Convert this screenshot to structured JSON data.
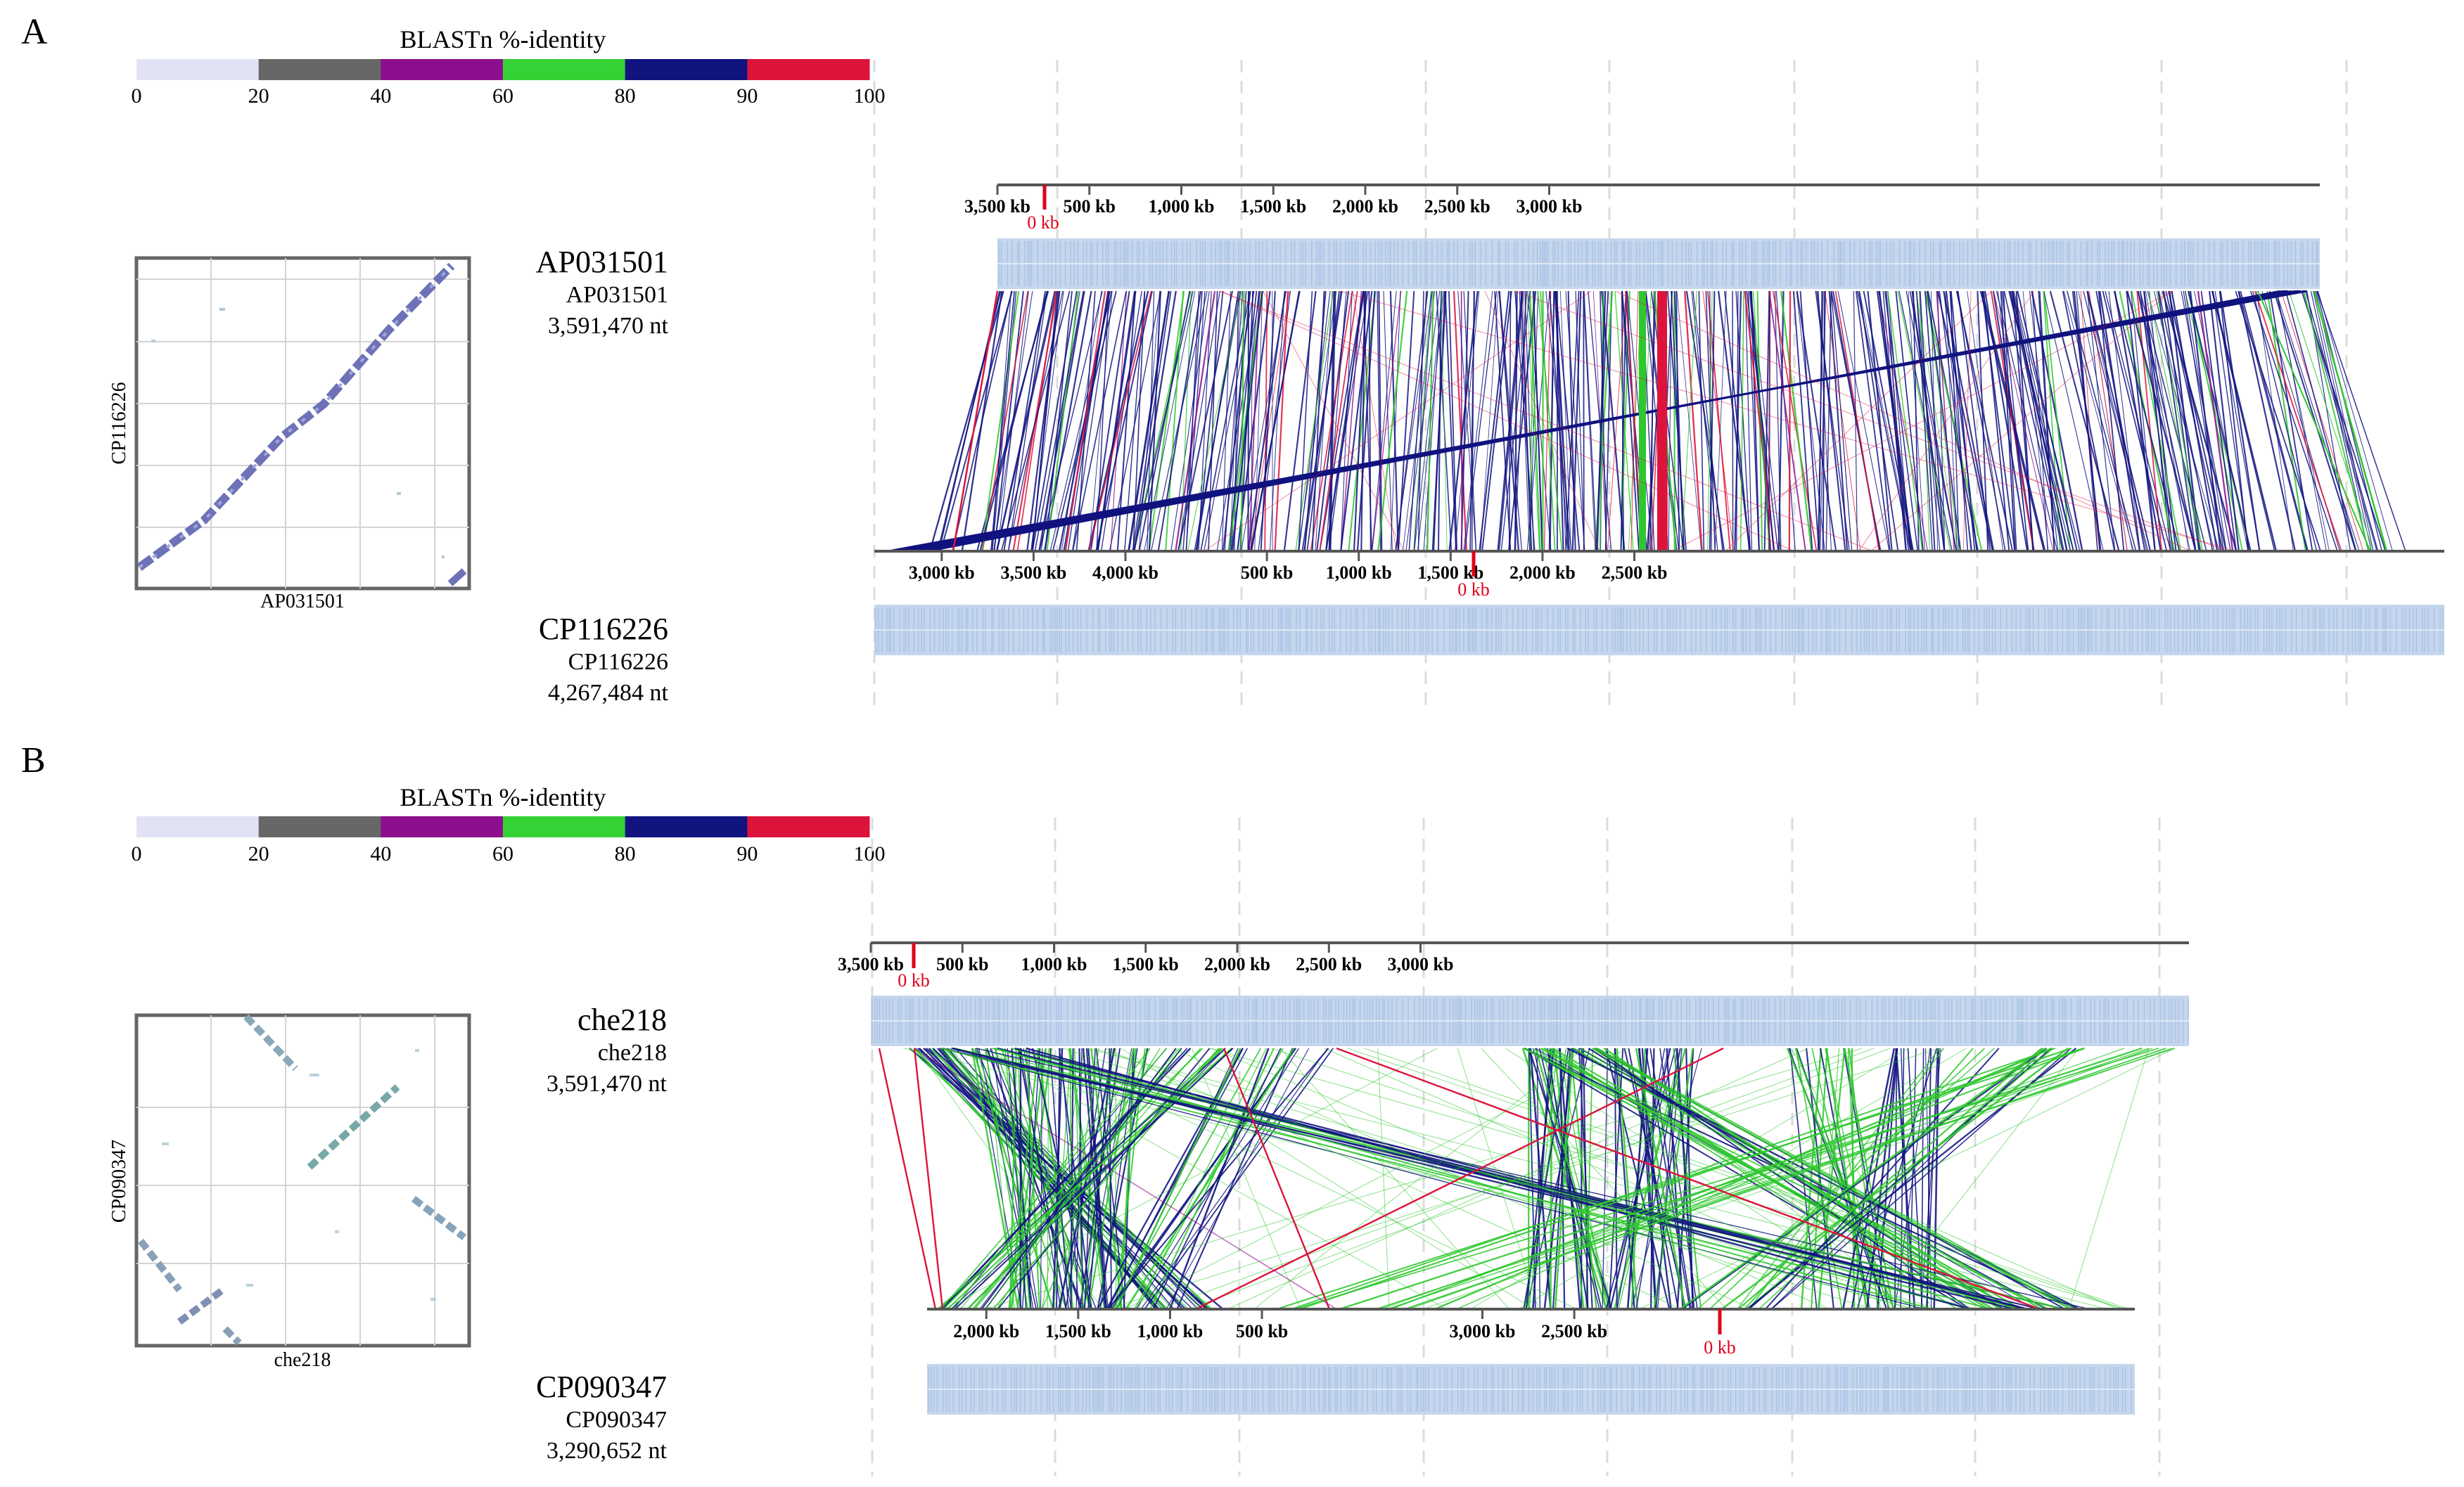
{
  "figure": {
    "panels": [
      {
        "label": "A",
        "legend": {
          "title": "BLASTn %-identity",
          "ticks": [
            "0",
            "20",
            "40",
            "60",
            "80",
            "90",
            "100"
          ],
          "colors": [
            "#e1e3f5",
            "#676767",
            "#8e0f8d",
            "#35d235",
            "#11137f",
            "#dc143c"
          ]
        },
        "dotplot": {
          "xlabel": "AP031501",
          "ylabel": "CP116226"
        },
        "query": {
          "name": "AP031501",
          "id": "AP031501",
          "length": "3,591,470 nt"
        },
        "subject": {
          "name": "CP116226",
          "id": "CP116226",
          "length": "4,267,484 nt"
        },
        "top_axis": {
          "zero_label": "0 kb",
          "ticks": [
            {
              "label": "3,500 kb",
              "pos": 0
            },
            {
              "label": "500 kb",
              "pos": 500
            },
            {
              "label": "1,000 kb",
              "pos": 1000
            },
            {
              "label": "1,500 kb",
              "pos": 1500
            },
            {
              "label": "2,000 kb",
              "pos": 2000
            },
            {
              "label": "2,500 kb",
              "pos": 2500
            },
            {
              "label": "3,000 kb",
              "pos": 3000
            }
          ]
        },
        "bottom_axis": {
          "zero_label": "0 kb",
          "ticks": [
            {
              "label": "3,000 kb",
              "pos": 340
            },
            {
              "label": "3,500 kb",
              "pos": 840
            },
            {
              "label": "4,000 kb",
              "pos": 1340
            },
            {
              "label": "500 kb",
              "pos": 2110
            },
            {
              "label": "1,000 kb",
              "pos": 2610
            },
            {
              "label": "1,500 kb",
              "pos": 3110
            },
            {
              "label": "2,000 kb",
              "pos": 3610
            },
            {
              "label": "2,500 kb",
              "pos": 4110
            }
          ]
        }
      },
      {
        "label": "B",
        "legend": {
          "title": "BLASTn %-identity",
          "ticks": [
            "0",
            "20",
            "40",
            "60",
            "80",
            "90",
            "100"
          ],
          "colors": [
            "#e1e3f5",
            "#676767",
            "#8e0f8d",
            "#35d235",
            "#11137f",
            "#dc143c"
          ]
        },
        "dotplot": {
          "xlabel": "che218",
          "ylabel": "CP090347"
        },
        "query": {
          "name": "che218",
          "id": "che218",
          "length": "3,591,470 nt"
        },
        "subject": {
          "name": "CP090347",
          "id": "CP090347",
          "length": "3,290,652 nt"
        },
        "top_axis": {
          "zero_label": "0 kb",
          "ticks": [
            {
              "label": "3,500 kb",
              "pos": 0
            },
            {
              "label": "500 kb",
              "pos": 500
            },
            {
              "label": "1,000 kb",
              "pos": 1000
            },
            {
              "label": "1,500 kb",
              "pos": 1500
            },
            {
              "label": "2,000 kb",
              "pos": 2000
            },
            {
              "label": "2,500 kb",
              "pos": 2500
            },
            {
              "label": "3,000 kb",
              "pos": 3000
            }
          ]
        },
        "bottom_axis": {
          "zero_label": "0 kb",
          "ticks": [
            {
              "label": "2,000 kb",
              "pos": 200
            },
            {
              "label": "1,500 kb",
              "pos": 700
            },
            {
              "label": "1,000 kb",
              "pos": 1200
            },
            {
              "label": "500 kb",
              "pos": 1700
            },
            {
              "label": "3,000 kb",
              "pos": 2900
            },
            {
              "label": "2,500 kb",
              "pos": 3400
            }
          ]
        }
      }
    ]
  }
}
